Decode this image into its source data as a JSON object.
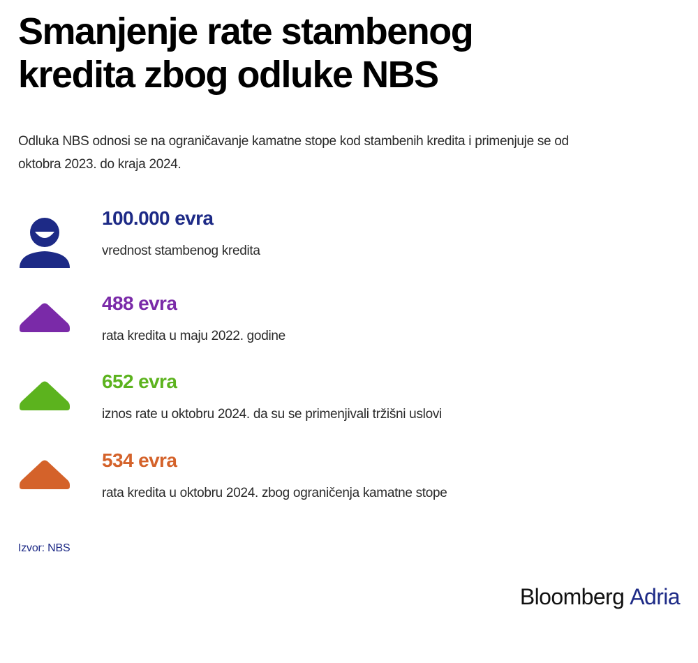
{
  "title_line1": "Smanjenje rate stambenog",
  "title_line2": "kredita zbog odluke NBS",
  "subtitle_line1": "Odluka NBS odnosi se na ograničavanje kamatne stope kod stambenih kredita i primenjuje se od",
  "subtitle_line2": "oktobra 2023. do kraja 2024.",
  "items": [
    {
      "icon": "person-icon",
      "value": "100.000 evra",
      "description": "vrednost stambenog kredita",
      "color": "#1d2a86"
    },
    {
      "icon": "triangle-icon",
      "value": "488 evra",
      "description": "rata kredita u maju 2022. godine",
      "color": "#7a2aa8"
    },
    {
      "icon": "triangle-icon",
      "value": "652 evra",
      "description": "iznos rate u oktobru 2024. da su se primenjivali tržišni uslovi",
      "color": "#5cb31e"
    },
    {
      "icon": "triangle-icon",
      "value": "534 evra",
      "description": "rata kredita u oktobru 2024. zbog ograničenja kamatne stope",
      "color": "#d4622a"
    }
  ],
  "source": "Izvor: NBS",
  "source_color": "#1d2a86",
  "logo": {
    "word1": "Bloomberg",
    "word2": "Adria",
    "word2_color": "#1d2a86"
  }
}
